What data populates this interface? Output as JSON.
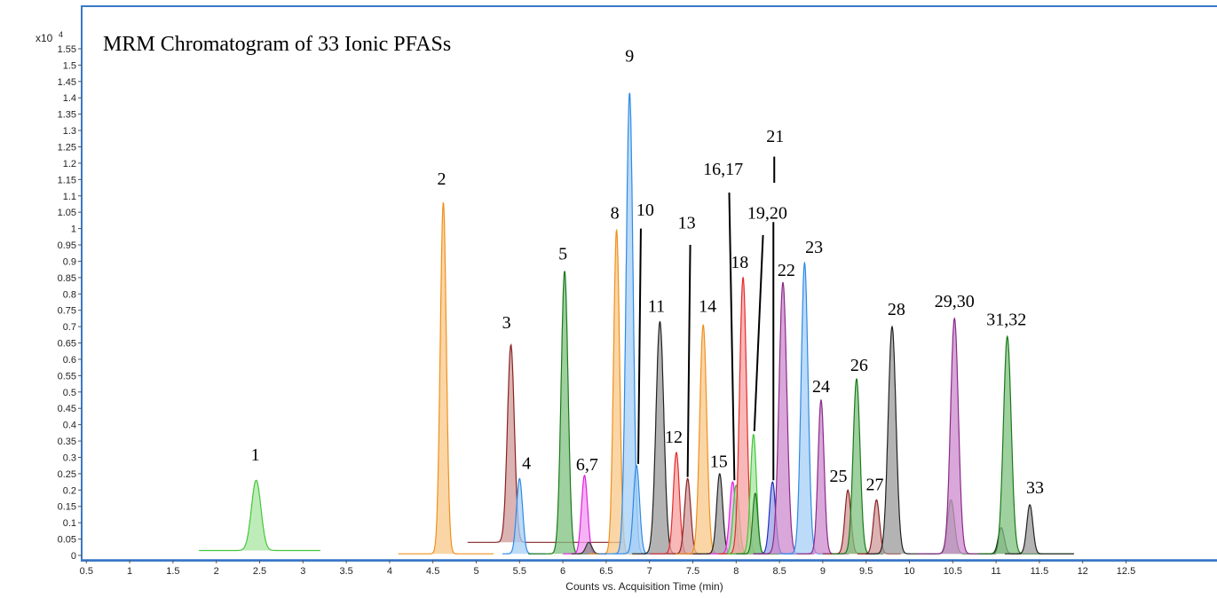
{
  "chart_data": {
    "type": "line",
    "title": "MRM Chromatogram of 33 Ionic PFASs",
    "xlabel": "Counts vs. Acquisition Time (min)",
    "y_multiplier_label": "x10",
    "y_multiplier_exponent": "4",
    "xlim": [
      0,
      13
    ],
    "ylim": [
      -0.01,
      1.6
    ],
    "x_ticks": [
      0.5,
      1,
      1.5,
      2,
      2.5,
      3,
      3.5,
      4,
      4.5,
      5,
      5.5,
      6,
      6.5,
      7,
      7.5,
      8,
      8.5,
      9,
      9.5,
      10,
      10.5,
      11,
      11.5,
      12,
      12.5
    ],
    "y_ticks": [
      0,
      0.05,
      0.1,
      0.15,
      0.2,
      0.25,
      0.3,
      0.35,
      0.4,
      0.45,
      0.5,
      0.55,
      0.6,
      0.65,
      0.7,
      0.75,
      0.8,
      0.85,
      0.9,
      0.95,
      1,
      1.05,
      1.1,
      1.15,
      1.2,
      1.25,
      1.3,
      1.35,
      1.4,
      1.45,
      1.5,
      1.55
    ],
    "grid": false,
    "peaks": [
      {
        "rt": 2.46,
        "height": 0.23,
        "baseline": 0.015,
        "width": 0.055,
        "range": [
          1.8,
          3.2
        ],
        "color": "#41c73a",
        "fill": "#a8e6a0"
      },
      {
        "rt": 4.62,
        "height": 1.08,
        "baseline": 0.005,
        "width": 0.035,
        "range": [
          4.1,
          5.2
        ],
        "color": "#f0901c",
        "fill": "#f8c888"
      },
      {
        "rt": 5.4,
        "height": 0.645,
        "baseline": 0.04,
        "width": 0.04,
        "range": [
          4.9,
          6.7
        ],
        "color": "#8a2222",
        "fill": "#d09a9a"
      },
      {
        "rt": 5.5,
        "height": 0.235,
        "baseline": 0.005,
        "width": 0.035,
        "range": [
          5.3,
          5.8
        ],
        "color": "#2e8ae6",
        "fill": "#a6cff5"
      },
      {
        "rt": 6.02,
        "height": 0.87,
        "baseline": 0.005,
        "width": 0.04,
        "range": [
          5.6,
          6.5
        ],
        "color": "#1a7a1a",
        "fill": "#7fc07f"
      },
      {
        "rt": 6.25,
        "height": 0.245,
        "baseline": 0.005,
        "width": 0.035,
        "range": [
          6.0,
          6.5
        ],
        "color": "#e020e0",
        "fill": "#f29af2"
      },
      {
        "rt": 6.3,
        "height": 0.04,
        "baseline": 0.005,
        "width": 0.035,
        "range": [
          6.1,
          6.5
        ],
        "color": "#333333",
        "fill": "#888888"
      },
      {
        "rt": 6.62,
        "height": 0.995,
        "baseline": 0.005,
        "width": 0.035,
        "range": [
          6.3,
          7.0
        ],
        "color": "#f0901c",
        "fill": "#f8c888"
      },
      {
        "rt": 6.77,
        "height": 1.415,
        "baseline": 0.005,
        "width": 0.04,
        "range": [
          6.4,
          7.2
        ],
        "color": "#2e8ae6",
        "fill": "#a6cff5"
      },
      {
        "rt": 6.85,
        "height": 0.275,
        "baseline": 0.005,
        "width": 0.035,
        "range": [
          6.6,
          7.2
        ],
        "color": "#2e8ae6",
        "fill": "#a6cff5"
      },
      {
        "rt": 7.12,
        "height": 0.715,
        "baseline": 0.005,
        "width": 0.045,
        "range": [
          6.8,
          7.5
        ],
        "color": "#222222",
        "fill": "#9a9a9a"
      },
      {
        "rt": 7.31,
        "height": 0.315,
        "baseline": 0.005,
        "width": 0.035,
        "range": [
          7.0,
          7.6
        ],
        "color": "#e62a2a",
        "fill": "#f5a0a0"
      },
      {
        "rt": 7.44,
        "height": 0.235,
        "baseline": 0.005,
        "width": 0.035,
        "range": [
          7.2,
          7.7
        ],
        "color": "#8a2222",
        "fill": "#d09a9a"
      },
      {
        "rt": 7.62,
        "height": 0.705,
        "baseline": 0.005,
        "width": 0.04,
        "range": [
          7.3,
          7.9
        ],
        "color": "#f0901c",
        "fill": "#f8c888"
      },
      {
        "rt": 7.81,
        "height": 0.25,
        "baseline": 0.005,
        "width": 0.035,
        "range": [
          7.5,
          8.1
        ],
        "color": "#222222",
        "fill": "#9a9a9a"
      },
      {
        "rt": 7.96,
        "height": 0.225,
        "baseline": 0.005,
        "width": 0.035,
        "range": [
          7.7,
          8.2
        ],
        "color": "#e020e0",
        "fill": "#f29af2"
      },
      {
        "rt": 8.0,
        "height": 0.215,
        "baseline": 0.005,
        "width": 0.035,
        "range": [
          7.8,
          8.3
        ],
        "color": "#41c73a",
        "fill": "#a8e6a0"
      },
      {
        "rt": 8.08,
        "height": 0.85,
        "baseline": 0.005,
        "width": 0.04,
        "range": [
          7.8,
          8.4
        ],
        "color": "#e62a2a",
        "fill": "#f5a0a0"
      },
      {
        "rt": 8.2,
        "height": 0.37,
        "baseline": 0.005,
        "width": 0.035,
        "range": [
          7.9,
          8.5
        ],
        "color": "#41c73a",
        "fill": "#a8e6a0"
      },
      {
        "rt": 8.22,
        "height": 0.19,
        "baseline": 0.005,
        "width": 0.03,
        "range": [
          8.0,
          8.5
        ],
        "color": "#1a7a1a",
        "fill": "#7fc07f"
      },
      {
        "rt": 8.42,
        "height": 0.225,
        "baseline": 0.005,
        "width": 0.035,
        "range": [
          8.2,
          8.7
        ],
        "color": "#2030c0",
        "fill": "#9aa0e6"
      },
      {
        "rt": 8.54,
        "height": 0.835,
        "baseline": 0.005,
        "width": 0.045,
        "range": [
          8.2,
          8.9
        ],
        "color": "#8a2a8a",
        "fill": "#cc8acc"
      },
      {
        "rt": 8.79,
        "height": 0.895,
        "baseline": 0.005,
        "width": 0.04,
        "range": [
          8.5,
          9.1
        ],
        "color": "#2e8ae6",
        "fill": "#a6cff5"
      },
      {
        "rt": 8.98,
        "height": 0.475,
        "baseline": 0.005,
        "width": 0.035,
        "range": [
          8.7,
          9.3
        ],
        "color": "#8a2a8a",
        "fill": "#cc8acc"
      },
      {
        "rt": 9.29,
        "height": 0.2,
        "baseline": 0.005,
        "width": 0.035,
        "range": [
          9.0,
          9.6
        ],
        "color": "#8a2222",
        "fill": "#d09a9a"
      },
      {
        "rt": 9.39,
        "height": 0.54,
        "baseline": 0.005,
        "width": 0.04,
        "range": [
          9.1,
          9.7
        ],
        "color": "#1a7a1a",
        "fill": "#7fc07f"
      },
      {
        "rt": 9.62,
        "height": 0.17,
        "baseline": 0.005,
        "width": 0.035,
        "range": [
          9.4,
          9.9
        ],
        "color": "#8a2222",
        "fill": "#d09a9a"
      },
      {
        "rt": 9.8,
        "height": 0.7,
        "baseline": 0.005,
        "width": 0.045,
        "range": [
          9.5,
          10.3
        ],
        "color": "#222222",
        "fill": "#9a9a9a"
      },
      {
        "rt": 10.48,
        "height": 0.17,
        "baseline": 0.005,
        "width": 0.04,
        "range": [
          10.2,
          10.8
        ],
        "color": "#1a7a1a",
        "fill": "#7fc07f"
      },
      {
        "rt": 10.52,
        "height": 0.725,
        "baseline": 0.005,
        "width": 0.045,
        "range": [
          10.1,
          11.0
        ],
        "color": "#8a2a8a",
        "fill": "#cc8acc"
      },
      {
        "rt": 11.06,
        "height": 0.085,
        "baseline": 0.005,
        "width": 0.035,
        "range": [
          10.8,
          11.3
        ],
        "color": "#222222",
        "fill": "#9a9a9a"
      },
      {
        "rt": 11.13,
        "height": 0.67,
        "baseline": 0.005,
        "width": 0.045,
        "range": [
          10.8,
          11.9
        ],
        "color": "#1a7a1a",
        "fill": "#7fc07f"
      },
      {
        "rt": 11.39,
        "height": 0.155,
        "baseline": 0.005,
        "width": 0.035,
        "range": [
          11.1,
          11.9
        ],
        "color": "#222222",
        "fill": "#9a9a9a"
      }
    ],
    "annotations": [
      {
        "text": "1",
        "x": 2.45,
        "y": 0.29
      },
      {
        "text": "2",
        "x": 4.6,
        "y": 1.135
      },
      {
        "text": "3",
        "x": 5.35,
        "y": 0.695
      },
      {
        "text": "4",
        "x": 5.58,
        "y": 0.265
      },
      {
        "text": "5",
        "x": 6.0,
        "y": 0.905
      },
      {
        "text": "6,7",
        "x": 6.28,
        "y": 0.26
      },
      {
        "text": "8",
        "x": 6.6,
        "y": 1.03
      },
      {
        "text": "9",
        "x": 6.77,
        "y": 1.51
      },
      {
        "text": "10",
        "x": 6.95,
        "y": 1.04
      },
      {
        "text": "11",
        "x": 7.08,
        "y": 0.745
      },
      {
        "text": "12",
        "x": 7.28,
        "y": 0.345
      },
      {
        "text": "13",
        "x": 7.43,
        "y": 1.0
      },
      {
        "text": "14",
        "x": 7.67,
        "y": 0.745
      },
      {
        "text": "15",
        "x": 7.8,
        "y": 0.27
      },
      {
        "text": "16,17",
        "x": 7.85,
        "y": 1.165
      },
      {
        "text": "18",
        "x": 8.04,
        "y": 0.88
      },
      {
        "text": "19,20",
        "x": 8.36,
        "y": 1.03
      },
      {
        "text": "21",
        "x": 8.45,
        "y": 1.265
      },
      {
        "text": "22",
        "x": 8.58,
        "y": 0.855
      },
      {
        "text": "23",
        "x": 8.9,
        "y": 0.925
      },
      {
        "text": "24",
        "x": 8.98,
        "y": 0.5
      },
      {
        "text": "25",
        "x": 9.18,
        "y": 0.225
      },
      {
        "text": "26",
        "x": 9.42,
        "y": 0.565
      },
      {
        "text": "27",
        "x": 9.6,
        "y": 0.2
      },
      {
        "text": "28",
        "x": 9.85,
        "y": 0.735
      },
      {
        "text": "29,30",
        "x": 10.52,
        "y": 0.76
      },
      {
        "text": "31,32",
        "x": 11.12,
        "y": 0.705
      },
      {
        "text": "33",
        "x": 11.45,
        "y": 0.19
      }
    ],
    "leader_lines": [
      {
        "from": [
          6.9,
          1.0
        ],
        "to": [
          6.87,
          0.28
        ]
      },
      {
        "from": [
          7.47,
          0.95
        ],
        "to": [
          7.44,
          0.24
        ]
      },
      {
        "from": [
          7.92,
          1.11
        ],
        "to": [
          7.98,
          0.23
        ]
      },
      {
        "from": [
          8.31,
          0.98
        ],
        "to": [
          8.21,
          0.38
        ]
      },
      {
        "from": [
          8.44,
          1.22
        ],
        "to": [
          8.44,
          1.14
        ]
      },
      {
        "from": [
          8.43,
          1.02
        ],
        "to": [
          8.43,
          0.23
        ]
      }
    ]
  }
}
